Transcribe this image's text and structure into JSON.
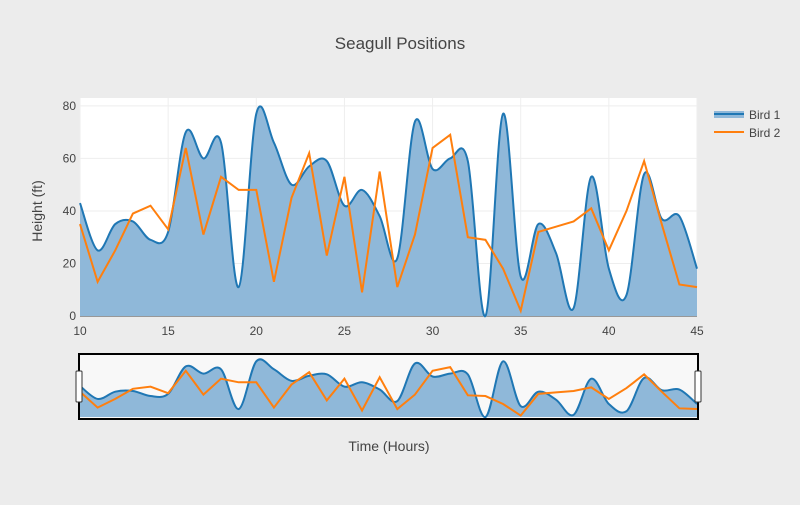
{
  "chart_data": {
    "type": "area",
    "title": "Seagull Positions",
    "xlabel": "Time (Hours)",
    "ylabel": "Height (ft)",
    "xlim": [
      10,
      45
    ],
    "ylim": [
      0,
      83
    ],
    "xticks": [
      10,
      15,
      20,
      25,
      30,
      35,
      40,
      45
    ],
    "yticks": [
      0,
      20,
      40,
      60,
      80
    ],
    "grid": true,
    "legend_position": "top-right",
    "rangeslider": true,
    "x": [
      10,
      11,
      12,
      13,
      14,
      15,
      16,
      17,
      18,
      19,
      20,
      21,
      22,
      23,
      24,
      25,
      26,
      27,
      28,
      29,
      30,
      31,
      32,
      33,
      34,
      35,
      36,
      37,
      38,
      39,
      40,
      41,
      42,
      43,
      44,
      45
    ],
    "series": [
      {
        "name": "Bird 1",
        "type": "area",
        "shape": "spline",
        "color": "#1f77b4",
        "fill": "#8fb8d9",
        "values": [
          43,
          25,
          35,
          36,
          29,
          32,
          70,
          60,
          66,
          11,
          77,
          66,
          50,
          57,
          59,
          42,
          48,
          38,
          22,
          74,
          56,
          60,
          59,
          0,
          77,
          15,
          35,
          24,
          3,
          53,
          18,
          8,
          54,
          37,
          38,
          18
        ]
      },
      {
        "name": "Bird 2",
        "type": "line",
        "shape": "linear",
        "color": "#ff7f0e",
        "values": [
          35,
          13,
          25,
          39,
          42,
          33,
          64,
          31,
          53,
          48,
          48,
          13,
          45,
          62,
          23,
          53,
          9,
          55,
          11,
          31,
          64,
          69,
          30,
          29,
          18,
          2,
          32,
          34,
          36,
          41,
          25,
          40,
          59,
          35,
          12,
          11
        ]
      }
    ]
  }
}
